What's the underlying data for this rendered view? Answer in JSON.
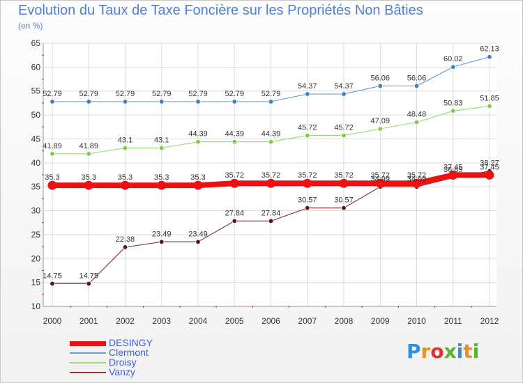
{
  "header": {
    "title": "Evolution du Taux de Taxe Foncière sur les Propriétés Non Bâties",
    "unit": "(en %)"
  },
  "logo": {
    "letters": [
      "P",
      "r",
      "o",
      "x",
      "i",
      "t",
      "i"
    ],
    "colors": [
      "#2f8fe0",
      "#f28c1e",
      "#e0332f",
      "#59b236",
      "#2f8fe0",
      "#f28c1e",
      "#59b236"
    ]
  },
  "chart_data": {
    "type": "line",
    "title": "Evolution du Taux de Taxe Foncière sur les Propriétés Non Bâties",
    "ylabel": "(en %)",
    "xlabel": "",
    "categories": [
      "2000",
      "2001",
      "2002",
      "2003",
      "2004",
      "2005",
      "2006",
      "2007",
      "2008",
      "2009",
      "2010",
      "2011",
      "2012"
    ],
    "ylim": [
      10,
      65
    ],
    "yticks": [
      "10",
      "15",
      "20",
      "25",
      "30",
      "35",
      "40",
      "45",
      "50",
      "55",
      "60",
      "65"
    ],
    "grid": true,
    "legend_position": "bottom-left",
    "series": [
      {
        "name": "DESINGY",
        "color": "#ee1111",
        "values": [
          35.3,
          35.3,
          35.3,
          35.3,
          35.3,
          35.72,
          35.72,
          35.72,
          35.72,
          35.72,
          35.72,
          37.45,
          37.45
        ],
        "labels": [
          "35.3",
          "35.3",
          "35.3",
          "35.3",
          "35.3",
          "35.72",
          "35.72",
          "35.72",
          "35.72",
          "35.72",
          "35.72",
          "37.45",
          "37.45"
        ]
      },
      {
        "name": "Clermont",
        "color": "#5b8fc7",
        "values": [
          52.79,
          52.79,
          52.79,
          52.79,
          52.79,
          52.79,
          52.79,
          54.37,
          54.37,
          56.06,
          56.06,
          60.02,
          62.13
        ],
        "labels": [
          "52.79",
          "52.79",
          "52.79",
          "52.79",
          "52.79",
          "52.79",
          "52.79",
          "54.37",
          "54.37",
          "56.06",
          "56.06",
          "60.02",
          "62.13"
        ]
      },
      {
        "name": "Droisy",
        "color": "#8fd45a",
        "values": [
          41.89,
          41.89,
          43.1,
          43.1,
          44.39,
          44.39,
          44.39,
          45.72,
          45.72,
          47.09,
          48.48,
          50.83,
          51.85
        ],
        "labels": [
          "41.89",
          "41.89",
          "43.1",
          "43.1",
          "44.39",
          "44.39",
          "44.39",
          "45.72",
          "45.72",
          "47.09",
          "48.48",
          "50.83",
          "51.85"
        ]
      },
      {
        "name": "Vanzy",
        "color": "#7a2a2e",
        "values": [
          14.75,
          14.75,
          22.38,
          23.49,
          23.49,
          27.84,
          27.84,
          30.57,
          30.57,
          34.99,
          34.99,
          36.89,
          38.27
        ],
        "labels": [
          "14.75",
          "14.75",
          "22.38",
          "23.49",
          "23.49",
          "27.84",
          "27.84",
          "30.57",
          "30.57",
          "34.99",
          "34.99",
          "36.89",
          "38.27"
        ]
      }
    ]
  }
}
